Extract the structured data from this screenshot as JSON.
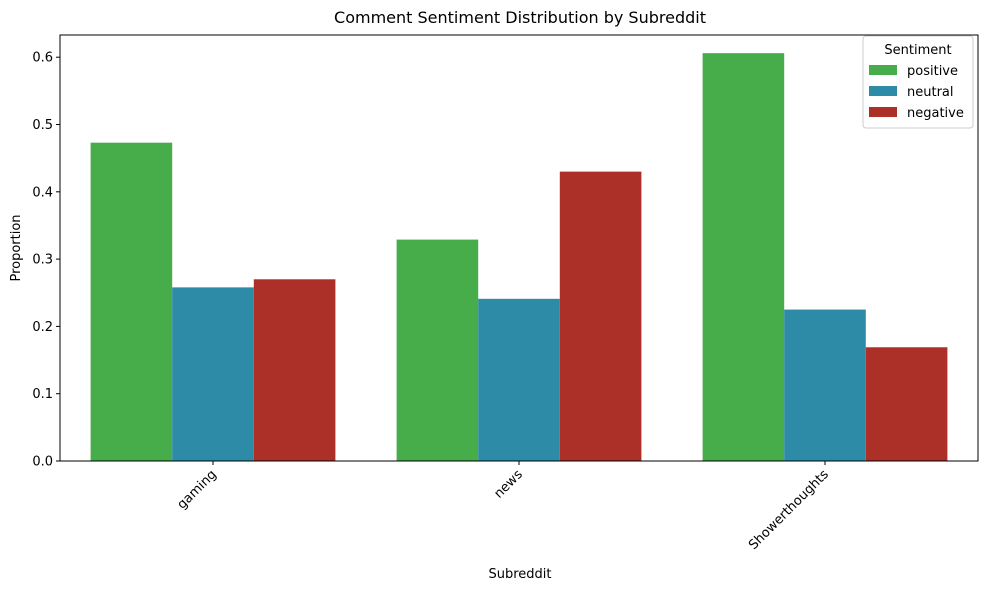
{
  "chart_data": {
    "type": "bar",
    "title": "Comment Sentiment Distribution by Subreddit",
    "xlabel": "Subreddit",
    "ylabel": "Proportion",
    "categories": [
      "gaming",
      "news",
      "Showerthoughts"
    ],
    "series": [
      {
        "name": "positive",
        "color": "#47ad4b",
        "values": [
          0.473,
          0.329,
          0.606
        ]
      },
      {
        "name": "neutral",
        "color": "#2e8ba8",
        "values": [
          0.258,
          0.241,
          0.225
        ]
      },
      {
        "name": "negative",
        "color": "#ac2f28",
        "values": [
          0.27,
          0.43,
          0.169
        ]
      }
    ],
    "ylim": [
      0,
      0.633
    ],
    "yticks": [
      0.0,
      0.1,
      0.2,
      0.3,
      0.4,
      0.5,
      0.6
    ],
    "ytick_labels": [
      "0.0",
      "0.1",
      "0.2",
      "0.3",
      "0.4",
      "0.5",
      "0.6"
    ],
    "xtick_rotation_deg": 45,
    "grid": false,
    "legend": {
      "title": "Sentiment",
      "placement": "top-right"
    }
  }
}
